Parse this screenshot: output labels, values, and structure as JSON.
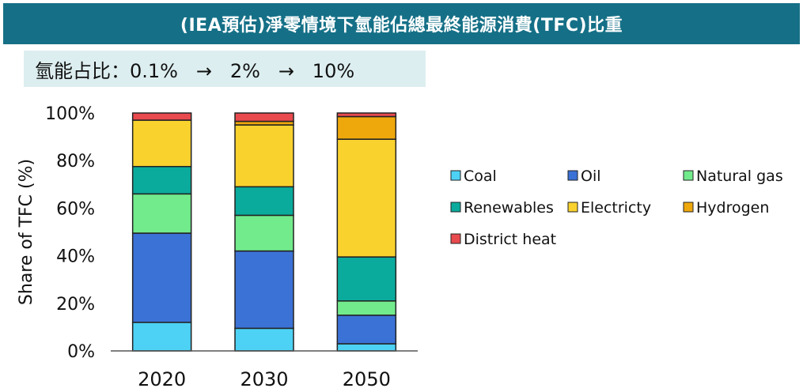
{
  "title": "(IEA預估)淨零情境下氫能佔總最終能源消費(TFC)比重",
  "share_note": "氫能占比：0.1%   →   2%   →   10%",
  "colors": {
    "title_bg": "#157087",
    "share_bg": "#ddeef0",
    "Coal": "#4dd2f5",
    "Oil": "#3b72d6",
    "Natural gas": "#72eb8c",
    "Renewables": "#0aab9c",
    "Electricty": "#fad22e",
    "Hydrogen": "#efa80c",
    "District heat": "#e84a4e"
  },
  "chart_data": {
    "type": "bar",
    "stacked": true,
    "categories": [
      "2020",
      "2030",
      "2050"
    ],
    "ylabel": "Share of TFC (%)",
    "xlabel": "",
    "ylim": [
      0,
      100
    ],
    "yticks": [
      "0%",
      "20%",
      "40%",
      "60%",
      "80%",
      "100%"
    ],
    "legend_position": "right",
    "series": [
      {
        "name": "Coal",
        "values": [
          12,
          9.5,
          3
        ]
      },
      {
        "name": "Oil",
        "values": [
          37.5,
          32.5,
          12
        ]
      },
      {
        "name": "Natural gas",
        "values": [
          16.5,
          15,
          6
        ]
      },
      {
        "name": "Renewables",
        "values": [
          11.5,
          12,
          18.5
        ]
      },
      {
        "name": "Electricty",
        "values": [
          19.5,
          26,
          49.5
        ]
      },
      {
        "name": "Hydrogen",
        "values": [
          0,
          1.5,
          9.5
        ]
      },
      {
        "name": "District heat",
        "values": [
          3,
          3.5,
          1.5
        ]
      }
    ]
  }
}
